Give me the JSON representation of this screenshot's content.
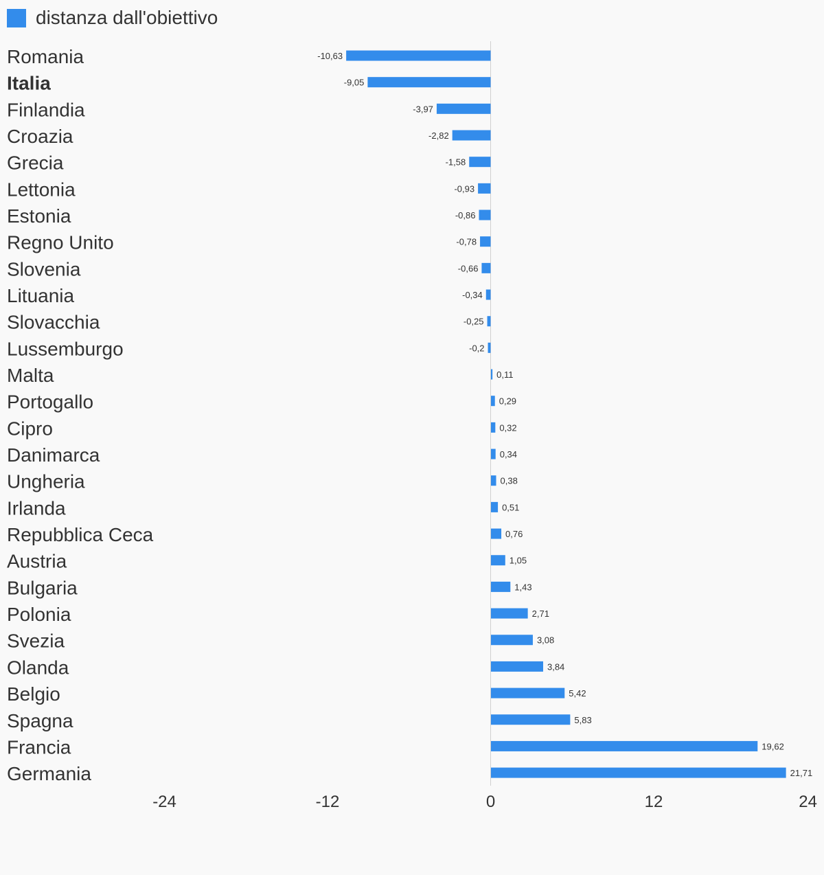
{
  "legend": {
    "label": "distanza dall'obiettivo",
    "color": "#338ceb"
  },
  "chart_data": {
    "type": "bar",
    "orientation": "horizontal",
    "xlim": [
      -24,
      24
    ],
    "ticks": [
      "-24",
      "-12",
      "0",
      "12",
      "24"
    ],
    "grid": false,
    "legend_position": "top-left",
    "highlighted_category": "Italia",
    "series": [
      {
        "name": "distanza dall'obiettivo",
        "color": "#338ceb"
      }
    ],
    "categories": [
      "Romania",
      "Italia",
      "Finlandia",
      "Croazia",
      "Grecia",
      "Lettonia",
      "Estonia",
      "Regno Unito",
      "Slovenia",
      "Lituania",
      "Slovacchia",
      "Lussemburgo",
      "Malta",
      "Portogallo",
      "Cipro",
      "Danimarca",
      "Ungheria",
      "Irlanda",
      "Repubblica Ceca",
      "Austria",
      "Bulgaria",
      "Polonia",
      "Svezia",
      "Olanda",
      "Belgio",
      "Spagna",
      "Francia",
      "Germania"
    ],
    "values": [
      -10.63,
      -9.05,
      -3.97,
      -2.82,
      -1.58,
      -0.93,
      -0.86,
      -0.78,
      -0.66,
      -0.34,
      -0.25,
      -0.2,
      0.11,
      0.29,
      0.32,
      0.34,
      0.38,
      0.51,
      0.76,
      1.05,
      1.43,
      2.71,
      3.08,
      3.84,
      5.42,
      5.83,
      19.62,
      21.71
    ],
    "value_labels": [
      "-10,63",
      "-9,05",
      "-3,97",
      "-2,82",
      "-1,58",
      "-0,93",
      "-0,86",
      "-0,78",
      "-0,66",
      "-0,34",
      "-0,25",
      "-0,2",
      "0,11",
      "0,29",
      "0,32",
      "0,34",
      "0,38",
      "0,51",
      "0,76",
      "1,05",
      "1,43",
      "2,71",
      "3,08",
      "3,84",
      "5,42",
      "5,83",
      "19,62",
      "21,71"
    ]
  }
}
